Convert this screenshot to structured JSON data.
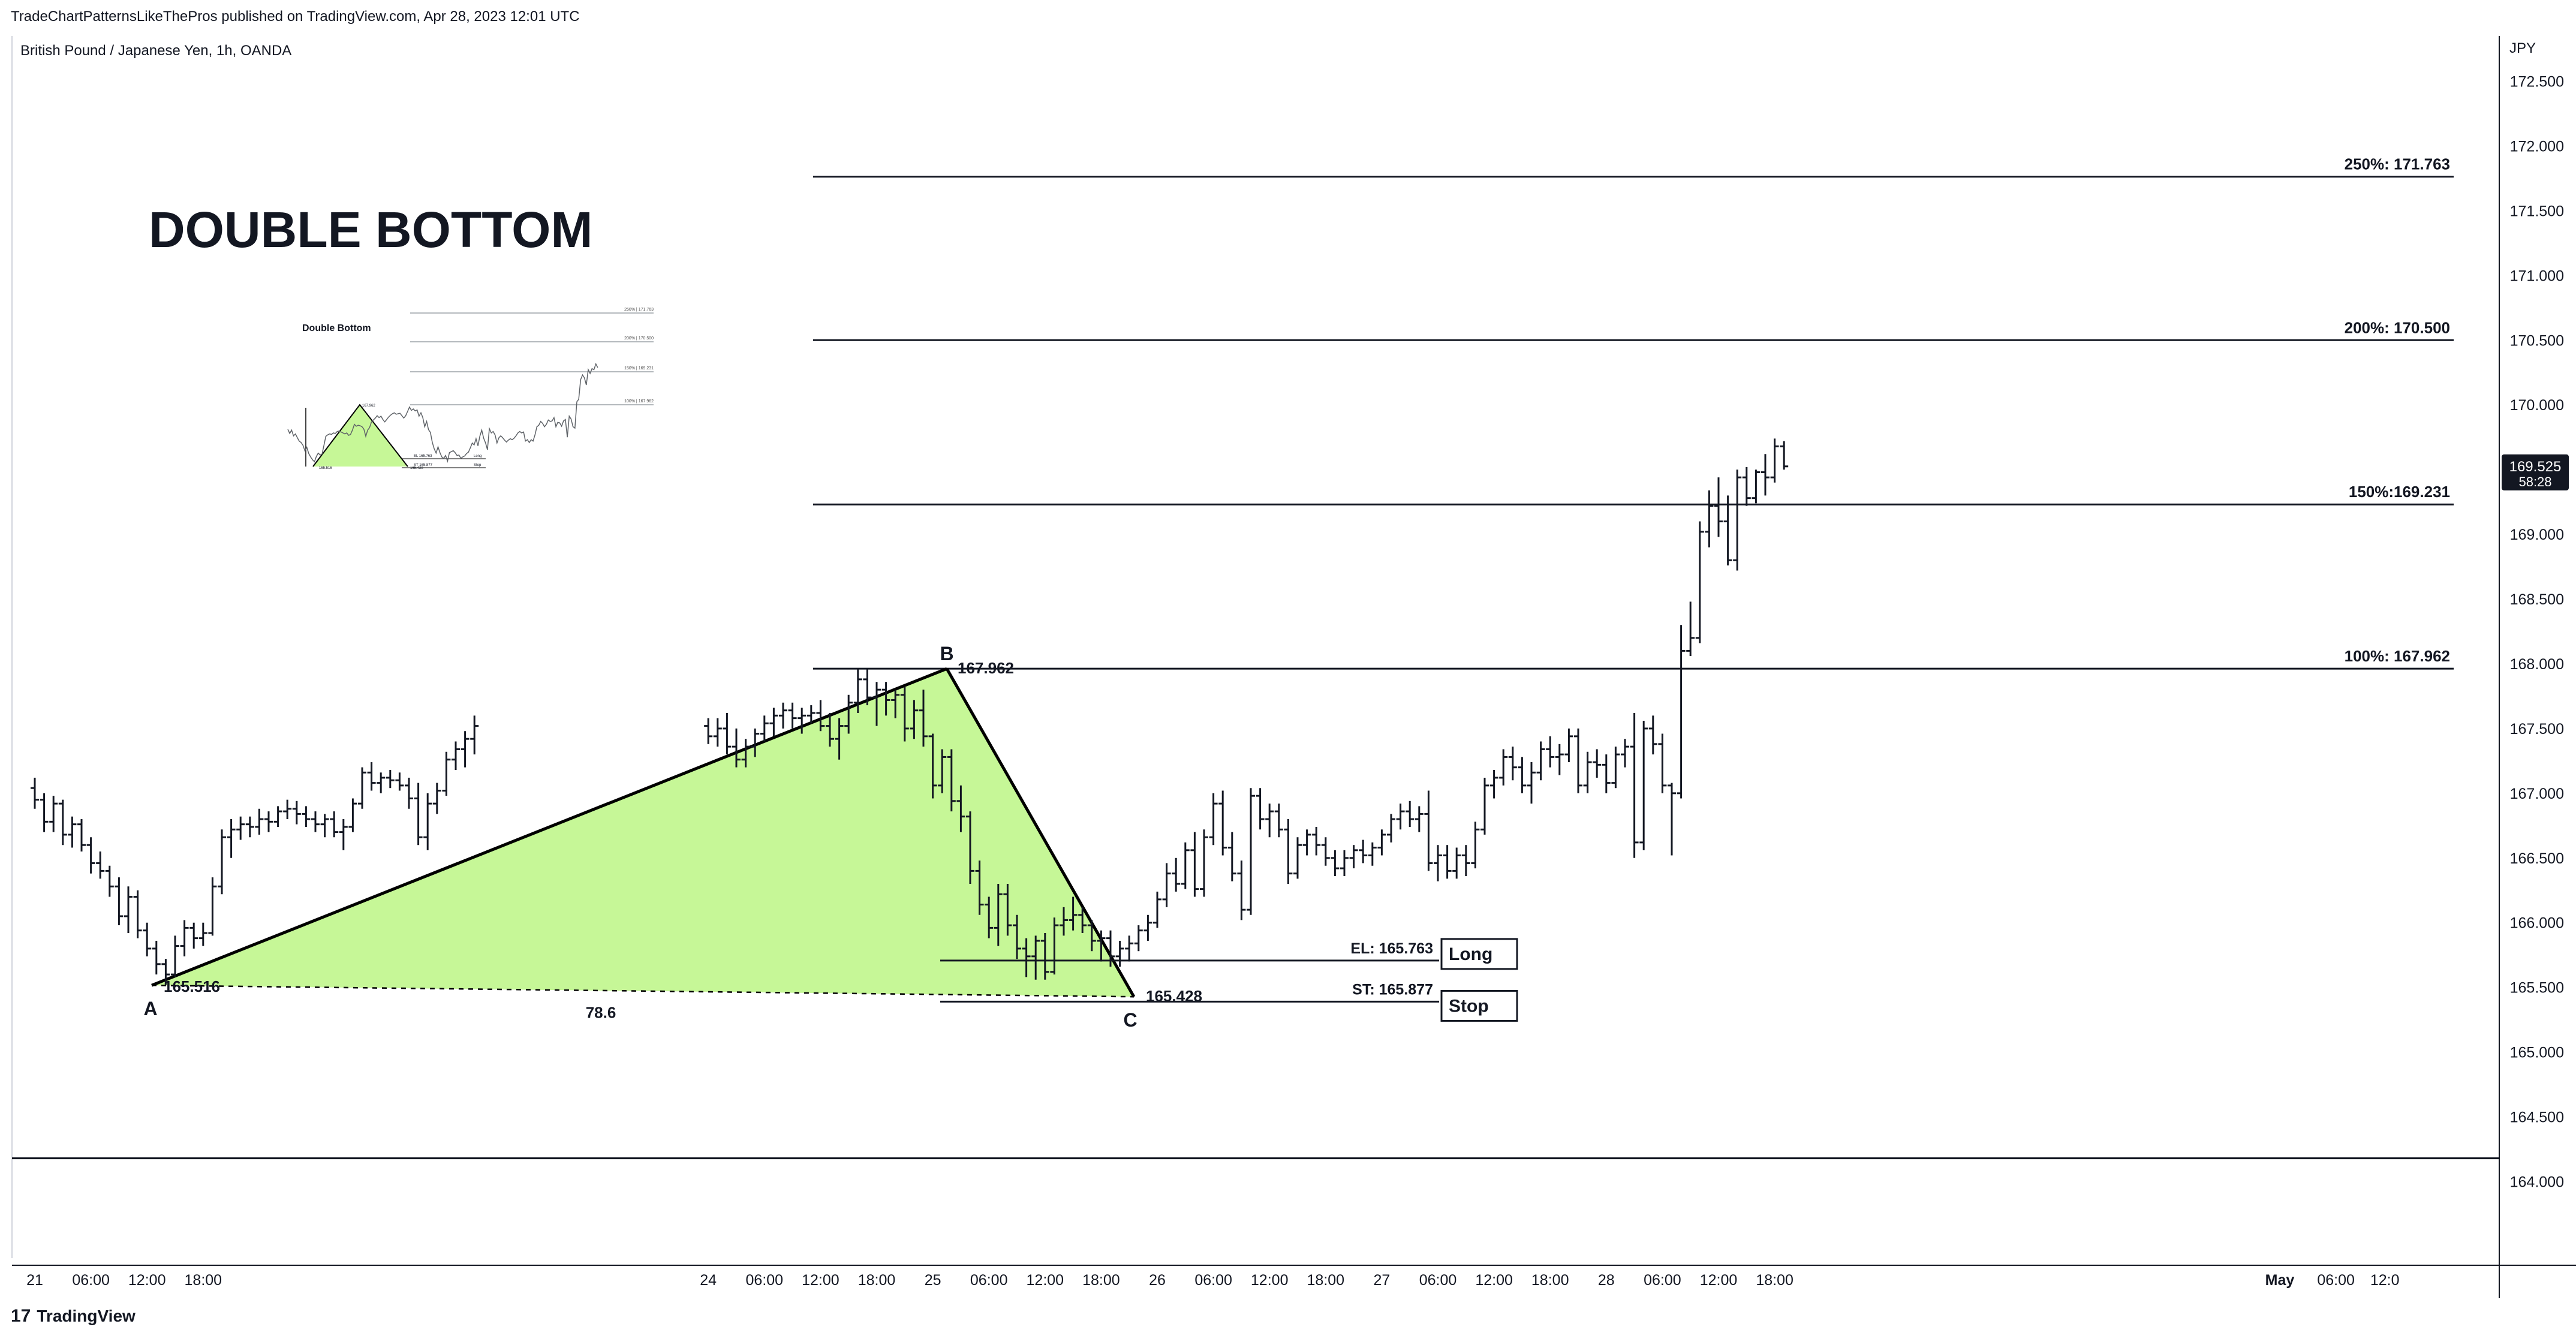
{
  "header": {
    "attribution": "TradeChartPatternsLikeThePros published on TradingView.com, Apr 28, 2023 12:01 UTC"
  },
  "brand": {
    "logo_glyph": "17",
    "name": "TradingView",
    "logo_icon": "tradingview-logo-icon"
  },
  "chart_data": {
    "type": "candlestick",
    "symbol_title": "British Pound / Japanese Yen, 1h, OANDA",
    "annotation_title": "DOUBLE BOTTOM",
    "currency_label": "JPY",
    "ylim": [
      163.4,
      172.85
    ],
    "y_ticks": [
      "172.500",
      "172.000",
      "171.500",
      "171.000",
      "170.500",
      "170.000",
      "169.500",
      "169.000",
      "168.500",
      "168.000",
      "167.500",
      "167.000",
      "166.500",
      "166.000",
      "165.500",
      "165.000",
      "164.500",
      "164.000"
    ],
    "y_tick_values": [
      172.5,
      172.0,
      171.5,
      171.0,
      170.5,
      170.0,
      169.5,
      169.0,
      168.5,
      168.0,
      167.5,
      167.0,
      166.5,
      166.0,
      165.5,
      165.0,
      164.5,
      164.0
    ],
    "x_ticks": [
      "21",
      "06:00",
      "12:00",
      "18:00",
      "24",
      "06:00",
      "12:00",
      "18:00",
      "25",
      "06:00",
      "12:00",
      "18:00",
      "26",
      "06:00",
      "12:00",
      "18:00",
      "27",
      "06:00",
      "12:00",
      "18:00",
      "28",
      "06:00",
      "12:00",
      "18:00",
      "May",
      "06:00",
      "12:0"
    ],
    "x_tick_hours": [
      0,
      6,
      12,
      18,
      72,
      78,
      84,
      90,
      96,
      102,
      108,
      114,
      120,
      126,
      132,
      138,
      144,
      150,
      156,
      162,
      168,
      174,
      180,
      186,
      240,
      246,
      252
    ],
    "x_tick_bold": [
      false,
      false,
      false,
      false,
      false,
      false,
      false,
      false,
      false,
      false,
      false,
      false,
      false,
      false,
      false,
      false,
      false,
      false,
      false,
      false,
      false,
      false,
      false,
      false,
      true,
      false,
      false
    ],
    "price_badge": {
      "price": "169.525",
      "countdown": "58:28",
      "value": 169.525
    },
    "fib_levels": [
      {
        "label": "250%: 171.763",
        "value": 171.763
      },
      {
        "label": "200%: 170.500",
        "value": 170.5
      },
      {
        "label": "150%:169.231",
        "value": 169.231
      },
      {
        "label": "100%: 167.962",
        "value": 167.962
      }
    ],
    "pattern": {
      "points": [
        {
          "name": "A",
          "label": "165.516",
          "hour": 12.5,
          "value": 165.516
        },
        {
          "name": "B",
          "label": "167.962",
          "hour": 97.5,
          "value": 167.962
        },
        {
          "name": "C",
          "label": "165.428",
          "hour": 117.5,
          "value": 165.428
        }
      ],
      "retrace_label": "78.6",
      "fill_color": "#c6f797",
      "line_color": "#000000"
    },
    "entry": {
      "label": "EL: 165.763",
      "value": 165.763,
      "button": "Long"
    },
    "stop": {
      "label": "ST: 165.877",
      "value": 165.877,
      "button": "Stop"
    },
    "support_line_value": 164.18,
    "ohlc": [
      [
        167.04,
        167.12,
        166.88,
        166.95
      ],
      [
        166.95,
        167.0,
        166.7,
        166.78
      ],
      [
        166.78,
        166.98,
        166.7,
        166.92
      ],
      [
        166.92,
        166.95,
        166.6,
        166.68
      ],
      [
        166.68,
        166.82,
        166.58,
        166.76
      ],
      [
        166.76,
        166.8,
        166.55,
        166.6
      ],
      [
        166.6,
        166.66,
        166.38,
        166.46
      ],
      [
        166.46,
        166.55,
        166.34,
        166.4
      ],
      [
        166.4,
        166.44,
        166.2,
        166.28
      ],
      [
        166.28,
        166.35,
        165.98,
        166.05
      ],
      [
        166.05,
        166.28,
        165.92,
        166.2
      ],
      [
        166.2,
        166.25,
        165.88,
        165.94
      ],
      [
        165.94,
        166.0,
        165.74,
        165.8
      ],
      [
        165.8,
        165.86,
        165.6,
        165.68
      ],
      [
        165.68,
        165.72,
        165.52,
        165.6
      ],
      [
        165.6,
        165.9,
        165.58,
        165.82
      ],
      [
        165.82,
        166.02,
        165.74,
        165.96
      ],
      [
        165.96,
        166.0,
        165.8,
        165.88
      ],
      [
        165.88,
        166.0,
        165.82,
        165.92
      ],
      [
        165.92,
        166.35,
        165.9,
        166.28
      ],
      [
        166.28,
        166.72,
        166.22,
        166.66
      ],
      [
        166.66,
        166.8,
        166.5,
        166.72
      ],
      [
        166.72,
        166.82,
        166.64,
        166.76
      ],
      [
        166.76,
        166.82,
        166.66,
        166.74
      ],
      [
        166.74,
        166.88,
        166.68,
        166.8
      ],
      [
        166.8,
        166.86,
        166.7,
        166.78
      ],
      [
        166.78,
        166.9,
        166.74,
        166.86
      ],
      [
        166.86,
        166.95,
        166.8,
        166.88
      ],
      [
        166.88,
        166.94,
        166.76,
        166.84
      ],
      [
        166.84,
        166.9,
        166.74,
        166.8
      ],
      [
        166.8,
        166.86,
        166.7,
        166.76
      ],
      [
        166.76,
        166.84,
        166.66,
        166.8
      ],
      [
        166.8,
        166.86,
        166.66,
        166.7
      ],
      [
        166.7,
        166.8,
        166.56,
        166.74
      ],
      [
        166.74,
        166.96,
        166.7,
        166.92
      ],
      [
        166.92,
        167.2,
        166.88,
        167.16
      ],
      [
        167.16,
        167.24,
        167.02,
        167.08
      ],
      [
        167.08,
        167.16,
        167.0,
        167.12
      ],
      [
        167.12,
        167.18,
        167.04,
        167.1
      ],
      [
        167.1,
        167.16,
        167.02,
        167.06
      ],
      [
        167.06,
        167.12,
        166.88,
        166.96
      ],
      [
        166.96,
        167.08,
        166.6,
        166.66
      ],
      [
        166.66,
        167.0,
        166.56,
        166.92
      ],
      [
        166.92,
        167.08,
        166.84,
        167.02
      ],
      [
        167.02,
        167.32,
        166.98,
        167.26
      ],
      [
        167.26,
        167.4,
        167.18,
        167.34
      ],
      [
        167.34,
        167.48,
        167.2,
        167.42
      ],
      [
        167.42,
        167.6,
        167.3,
        167.52
      ],
      [
        167.52,
        167.58,
        167.38,
        167.44
      ],
      [
        167.44,
        167.58,
        167.36,
        167.5
      ],
      [
        167.5,
        167.62,
        167.3,
        167.36
      ],
      [
        167.36,
        167.5,
        167.2,
        167.26
      ],
      [
        167.26,
        167.42,
        167.2,
        167.36
      ],
      [
        167.36,
        167.5,
        167.28,
        167.46
      ],
      [
        167.46,
        167.6,
        167.4,
        167.54
      ],
      [
        167.54,
        167.66,
        167.44,
        167.6
      ],
      [
        167.6,
        167.7,
        167.5,
        167.64
      ],
      [
        167.64,
        167.7,
        167.5,
        167.58
      ],
      [
        167.58,
        167.66,
        167.46,
        167.6
      ],
      [
        167.6,
        167.68,
        167.54,
        167.62
      ],
      [
        167.62,
        167.72,
        167.48,
        167.52
      ],
      [
        167.52,
        167.62,
        167.36,
        167.42
      ],
      [
        167.42,
        167.58,
        167.26,
        167.52
      ],
      [
        167.52,
        167.76,
        167.46,
        167.7
      ],
      [
        167.7,
        167.96,
        167.62,
        167.88
      ],
      [
        167.88,
        167.96,
        167.68,
        167.74
      ],
      [
        167.74,
        167.86,
        167.52,
        167.8
      ],
      [
        167.8,
        167.86,
        167.6,
        167.72
      ],
      [
        167.72,
        167.8,
        167.58,
        167.76
      ],
      [
        167.76,
        167.82,
        167.4,
        167.5
      ],
      [
        167.5,
        167.72,
        167.42,
        167.64
      ],
      [
        167.64,
        167.8,
        167.36,
        167.44
      ],
      [
        167.44,
        167.46,
        166.96,
        167.06
      ],
      [
        167.06,
        167.34,
        167.0,
        167.28
      ],
      [
        167.28,
        167.34,
        166.86,
        166.94
      ],
      [
        166.94,
        167.06,
        166.7,
        166.82
      ],
      [
        166.82,
        166.86,
        166.3,
        166.4
      ],
      [
        166.4,
        166.48,
        166.06,
        166.14
      ],
      [
        166.14,
        166.2,
        165.88,
        165.96
      ],
      [
        165.96,
        166.3,
        165.82,
        166.22
      ],
      [
        166.22,
        166.3,
        165.9,
        165.98
      ],
      [
        165.98,
        166.06,
        165.72,
        165.8
      ],
      [
        165.8,
        165.88,
        165.58,
        165.74
      ],
      [
        165.74,
        165.9,
        165.56,
        165.86
      ],
      [
        165.86,
        165.92,
        165.56,
        165.62
      ],
      [
        165.62,
        166.04,
        165.6,
        165.98
      ],
      [
        165.98,
        166.12,
        165.9,
        166.02
      ],
      [
        166.02,
        166.2,
        165.94,
        166.06
      ],
      [
        166.06,
        166.12,
        165.92,
        165.98
      ],
      [
        165.98,
        166.02,
        165.78,
        165.86
      ],
      [
        165.86,
        165.94,
        165.7,
        165.88
      ],
      [
        165.88,
        165.94,
        165.66,
        165.74
      ],
      [
        165.74,
        165.86,
        165.66,
        165.8
      ],
      [
        165.8,
        165.9,
        165.7,
        165.84
      ],
      [
        165.84,
        165.98,
        165.78,
        165.94
      ],
      [
        165.94,
        166.06,
        165.86,
        166.0
      ],
      [
        166.0,
        166.24,
        165.96,
        166.18
      ],
      [
        166.18,
        166.46,
        166.12,
        166.38
      ],
      [
        166.38,
        166.5,
        166.24,
        166.3
      ],
      [
        166.3,
        166.62,
        166.26,
        166.56
      ],
      [
        166.56,
        166.7,
        166.2,
        166.26
      ],
      [
        166.26,
        166.72,
        166.2,
        166.66
      ],
      [
        166.66,
        167.0,
        166.6,
        166.92
      ],
      [
        166.92,
        167.02,
        166.52,
        166.58
      ],
      [
        166.58,
        166.7,
        166.32,
        166.38
      ],
      [
        166.38,
        166.48,
        166.02,
        166.1
      ],
      [
        166.1,
        167.04,
        166.06,
        166.98
      ],
      [
        166.98,
        167.04,
        166.72,
        166.8
      ],
      [
        166.8,
        166.92,
        166.66,
        166.86
      ],
      [
        166.86,
        166.92,
        166.66,
        166.72
      ],
      [
        166.72,
        166.8,
        166.3,
        166.38
      ],
      [
        166.38,
        166.66,
        166.34,
        166.6
      ],
      [
        166.6,
        166.72,
        166.52,
        166.68
      ],
      [
        166.68,
        166.74,
        166.52,
        166.6
      ],
      [
        166.6,
        166.66,
        166.44,
        166.5
      ],
      [
        166.5,
        166.56,
        166.36,
        166.42
      ],
      [
        166.42,
        166.56,
        166.36,
        166.5
      ],
      [
        166.5,
        166.6,
        166.42,
        166.56
      ],
      [
        166.56,
        166.64,
        166.46,
        166.52
      ],
      [
        166.52,
        166.62,
        166.44,
        166.58
      ],
      [
        166.58,
        166.72,
        166.52,
        166.68
      ],
      [
        166.68,
        166.84,
        166.62,
        166.8
      ],
      [
        166.8,
        166.92,
        166.72,
        166.86
      ],
      [
        166.86,
        166.94,
        166.74,
        166.8
      ],
      [
        166.8,
        166.9,
        166.7,
        166.84
      ],
      [
        166.84,
        167.02,
        166.4,
        166.46
      ],
      [
        166.46,
        166.6,
        166.32,
        166.52
      ],
      [
        166.52,
        166.6,
        166.34,
        166.4
      ],
      [
        166.4,
        166.58,
        166.34,
        166.52
      ],
      [
        166.52,
        166.6,
        166.36,
        166.46
      ],
      [
        166.46,
        166.78,
        166.42,
        166.72
      ],
      [
        166.72,
        167.12,
        166.68,
        167.06
      ],
      [
        167.06,
        167.18,
        166.96,
        167.12
      ],
      [
        167.12,
        167.34,
        167.06,
        167.28
      ],
      [
        167.28,
        167.36,
        167.1,
        167.2
      ],
      [
        167.2,
        167.28,
        167.0,
        167.06
      ],
      [
        167.06,
        167.24,
        166.92,
        167.16
      ],
      [
        167.16,
        167.4,
        167.1,
        167.34
      ],
      [
        167.34,
        167.44,
        167.2,
        167.28
      ],
      [
        167.28,
        167.38,
        167.14,
        167.3
      ],
      [
        167.3,
        167.5,
        167.24,
        167.44
      ],
      [
        167.44,
        167.5,
        167.0,
        167.06
      ],
      [
        167.06,
        167.32,
        167.0,
        167.24
      ],
      [
        167.24,
        167.34,
        167.12,
        167.22
      ],
      [
        167.22,
        167.3,
        167.0,
        167.08
      ],
      [
        167.08,
        167.36,
        167.04,
        167.3
      ],
      [
        167.3,
        167.42,
        167.2,
        167.36
      ],
      [
        167.36,
        167.62,
        166.5,
        166.62
      ],
      [
        166.62,
        167.56,
        166.56,
        167.5
      ],
      [
        167.5,
        167.6,
        167.3,
        167.38
      ],
      [
        167.38,
        167.46,
        167.0,
        167.06
      ],
      [
        167.06,
        167.08,
        166.52,
        167.0
      ],
      [
        167.0,
        168.3,
        166.96,
        168.1
      ],
      [
        168.1,
        168.48,
        168.06,
        168.2
      ],
      [
        168.2,
        169.1,
        168.16,
        169.02
      ],
      [
        169.02,
        169.34,
        168.9,
        169.22
      ],
      [
        169.22,
        169.44,
        168.98,
        169.1
      ],
      [
        169.1,
        169.3,
        168.76,
        168.8
      ],
      [
        168.8,
        169.5,
        168.72,
        169.44
      ],
      [
        169.44,
        169.52,
        169.22,
        169.28
      ],
      [
        169.28,
        169.5,
        169.24,
        169.48
      ],
      [
        169.48,
        169.62,
        169.3,
        169.44
      ],
      [
        169.44,
        169.74,
        169.4,
        169.68
      ],
      [
        169.68,
        169.72,
        169.5,
        169.525
      ]
    ]
  },
  "thumbnail": {
    "title": "Double Bottom",
    "fib_labels": [
      "250% | 171.763",
      "200% | 170.500",
      "150% | 169.231",
      "100% | 167.962"
    ],
    "entry_label": "EL 165.763",
    "entry_button": "Long",
    "stop_label": "ST 165.877",
    "stop_button": "Stop",
    "a_label": "165.516",
    "b_label": "167.962",
    "c_label": "165.428"
  }
}
